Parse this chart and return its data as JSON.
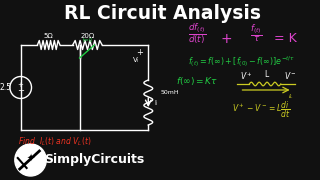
{
  "bg_color": "#111111",
  "title": "RL Circuit Analysis",
  "title_color": "#ffffff",
  "title_fontsize": 13.5,
  "brand": "SimplyCircuits",
  "colors": {
    "white": "#ffffff",
    "magenta": "#dd44cc",
    "green": "#22cc44",
    "red": "#ee3322",
    "yellow": "#cccc22",
    "light_gray": "#cccccc"
  },
  "circuit": {
    "source_value": "2.5",
    "r1_value": "5Ω",
    "r2_value": "20Ω",
    "l_value": "50mH"
  }
}
